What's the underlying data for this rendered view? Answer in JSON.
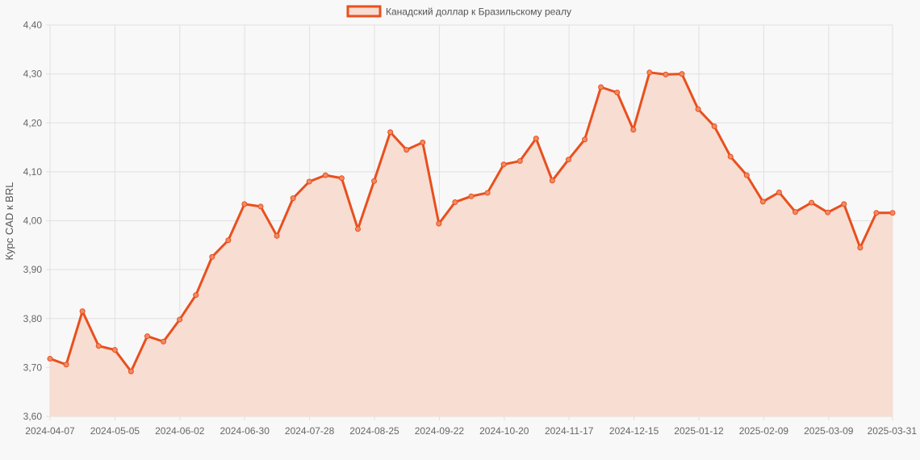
{
  "colors": {
    "line": "#e8501e",
    "fill": "#f7ddd2",
    "point_fill": "#f28a63",
    "grid": "#e0e0e0",
    "background": "#f8f8f8"
  },
  "chart_data": {
    "type": "line",
    "ylabel": "Курс CAD к BRL",
    "xlabel": "",
    "ylim": [
      3.6,
      4.4
    ],
    "yticks": [
      "3,60",
      "3,70",
      "3,80",
      "3,90",
      "4,00",
      "4,10",
      "4,20",
      "4,30",
      "4,40"
    ],
    "xticks": [
      "2024-04-07",
      "2024-05-05",
      "2024-06-02",
      "2024-06-30",
      "2024-07-28",
      "2024-08-25",
      "2024-09-22",
      "2024-10-20",
      "2024-11-17",
      "2024-12-15",
      "2025-01-12",
      "2025-02-09",
      "2025-03-09",
      "2025-03-31"
    ],
    "grid": true,
    "legend_position": "top-center",
    "series": [
      {
        "name": "Канадский доллар к Бразильскому реалу",
        "values": [
          3.718,
          3.706,
          3.815,
          3.744,
          3.736,
          3.692,
          3.764,
          3.753,
          3.798,
          3.848,
          3.926,
          3.96,
          4.034,
          4.029,
          3.969,
          4.046,
          4.08,
          4.093,
          4.087,
          3.983,
          4.081,
          4.181,
          4.145,
          4.16,
          3.994,
          4.038,
          4.05,
          4.057,
          4.115,
          4.122,
          4.168,
          4.082,
          4.125,
          4.166,
          4.273,
          4.262,
          4.186,
          4.303,
          4.299,
          4.3,
          4.228,
          4.193,
          4.131,
          4.093,
          4.039,
          4.058,
          4.018,
          4.037,
          4.017,
          4.034,
          3.945,
          4.016,
          4.016
        ]
      }
    ]
  }
}
